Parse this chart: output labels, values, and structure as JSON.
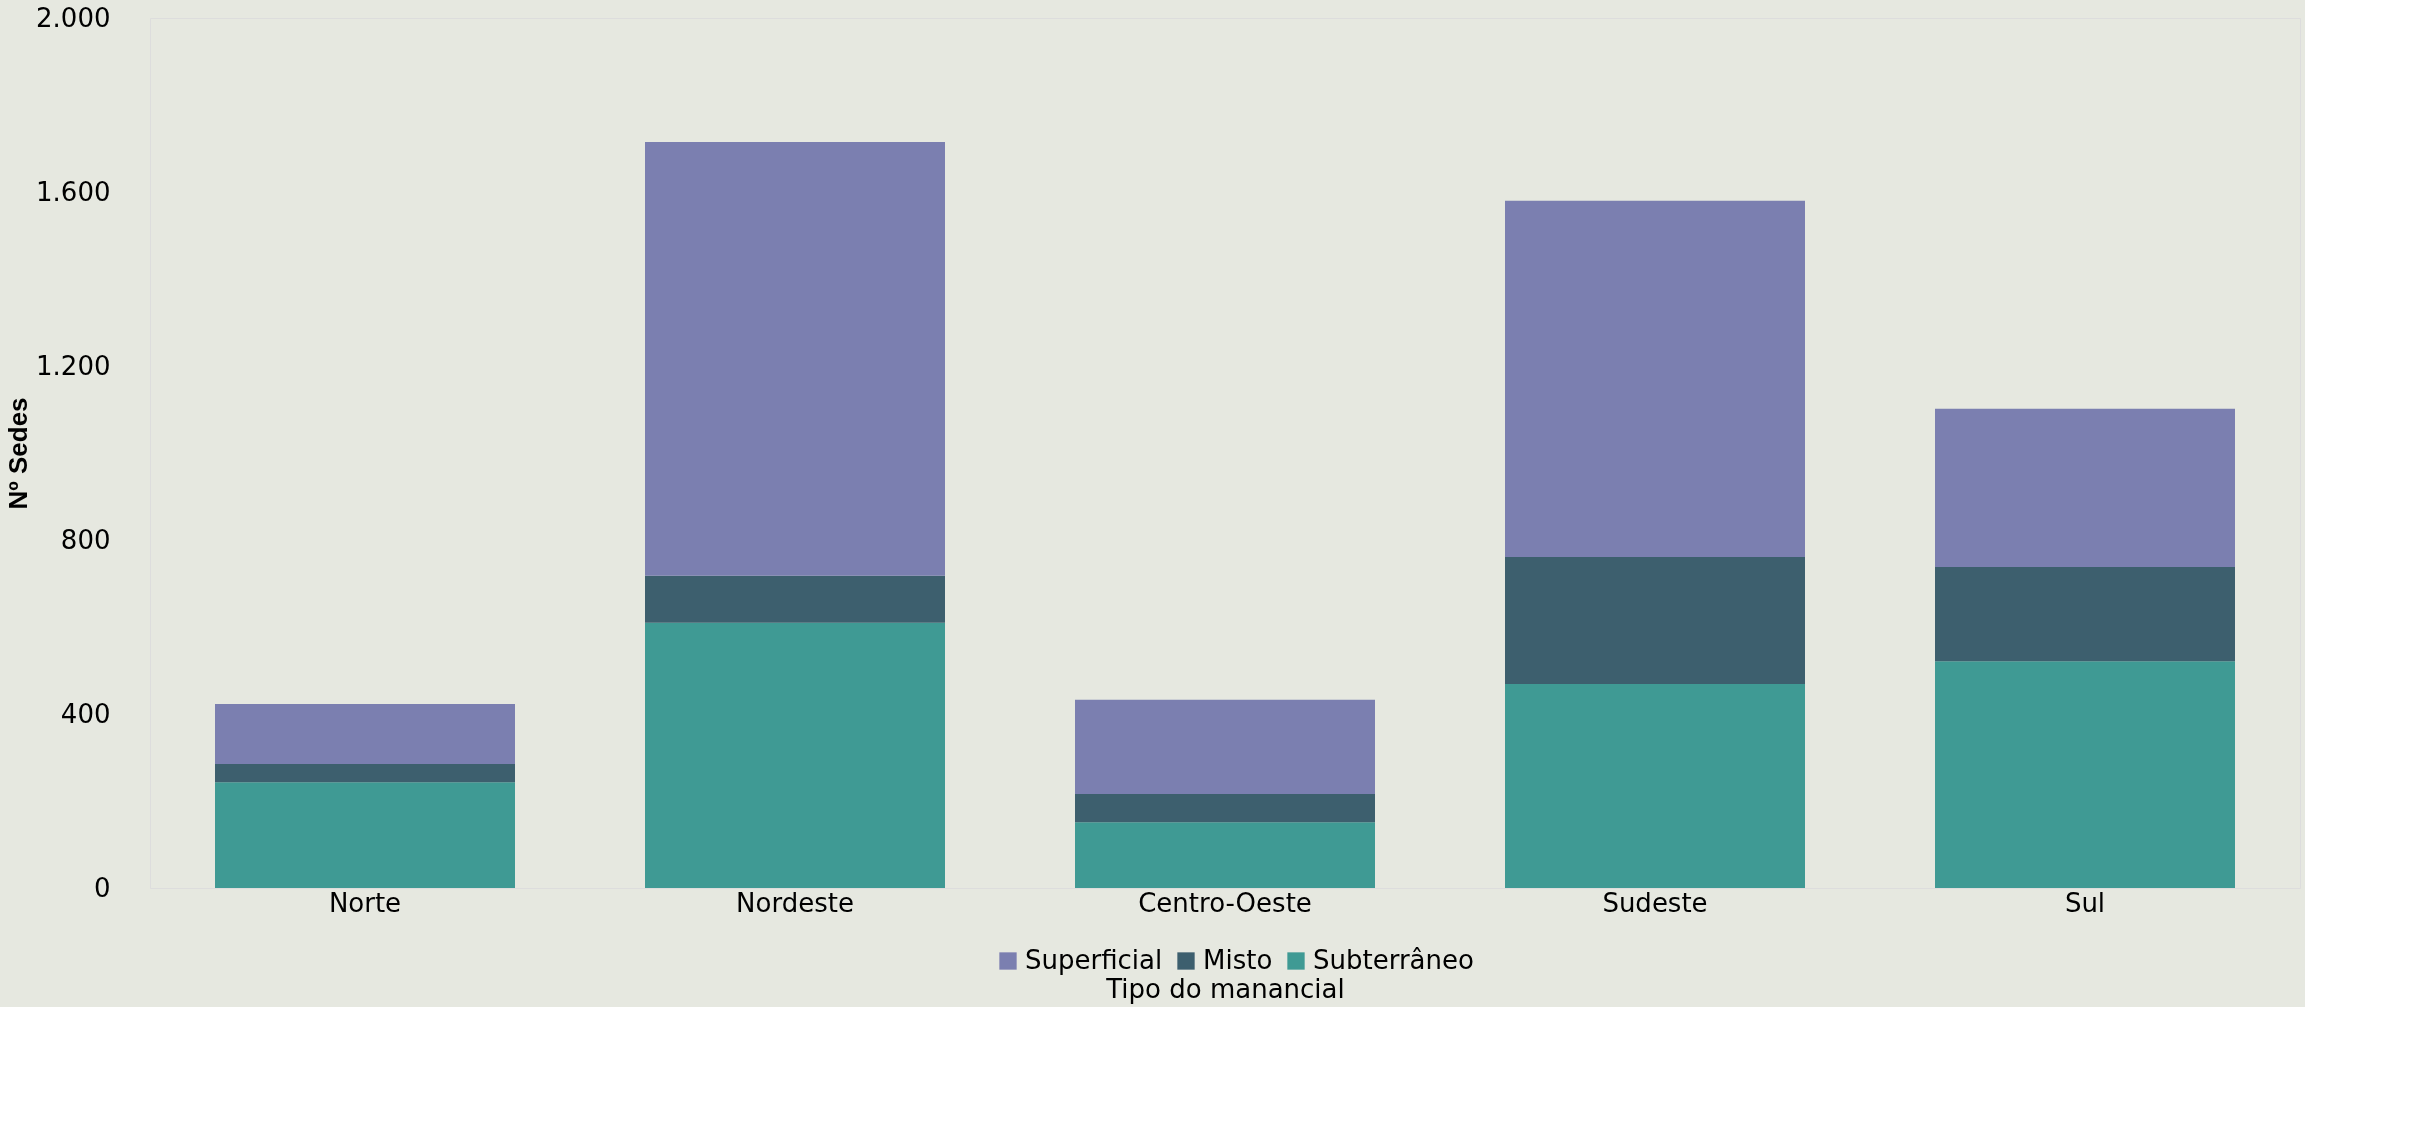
{
  "chart_data": {
    "type": "bar",
    "stacked": true,
    "xlabel": "Tipo do manancial",
    "ylabel": "Nº Sedes",
    "categories": [
      "Norte",
      "Nordeste",
      "Centro-Oeste",
      "Sudeste",
      "Sul"
    ],
    "series": [
      {
        "name": "Subterrâneo",
        "color": "#3f9a94",
        "values": [
          243,
          610,
          151,
          469,
          521
        ]
      },
      {
        "name": "Misto",
        "color": "#3d5f6e",
        "values": [
          42,
          108,
          65,
          292,
          217
        ]
      },
      {
        "name": "Superficial",
        "color": "#7b7fb0",
        "values": [
          138,
          997,
          217,
          819,
          364
        ]
      }
    ],
    "ylim": [
      0,
      2000
    ],
    "yticks": [
      0,
      400,
      {
        "value": 800,
        "label": "800"
      },
      {
        "value": 1200,
        "label": "1.200"
      },
      {
        "value": 1600,
        "label": "1.600"
      },
      {
        "value": 2000,
        "label": "2.000"
      }
    ],
    "grid": false,
    "legend": "bottom"
  }
}
